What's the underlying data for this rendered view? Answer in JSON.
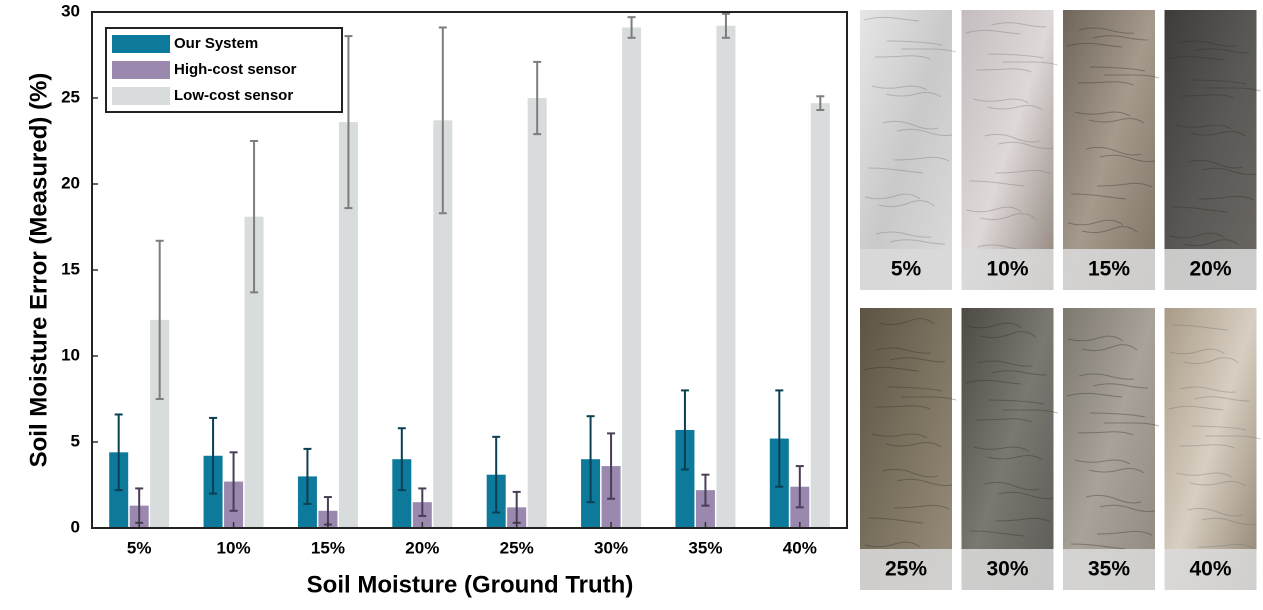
{
  "chart_data": {
    "type": "bar",
    "x_label": "Soil Moisture (Ground Truth)",
    "y_label": "Soil Moisture Error (Measured) (%)",
    "categories": [
      "5%",
      "10%",
      "15%",
      "20%",
      "25%",
      "30%",
      "35%",
      "40%"
    ],
    "series": [
      {
        "name": "Our System",
        "color": "#0d7a9c",
        "values": [
          4.4,
          4.2,
          3.0,
          4.0,
          3.1,
          4.0,
          5.7,
          5.2
        ],
        "errors": [
          2.2,
          2.2,
          1.6,
          1.8,
          2.2,
          2.5,
          2.3,
          2.8
        ],
        "error_color": "#0b3f52"
      },
      {
        "name": "High-cost sensor",
        "color": "#9a88ae",
        "values": [
          1.3,
          2.7,
          1.0,
          1.5,
          1.2,
          3.6,
          2.2,
          2.4
        ],
        "errors": [
          1.0,
          1.7,
          0.8,
          0.8,
          0.9,
          1.9,
          0.9,
          1.2
        ],
        "error_color": "#4a3e56"
      },
      {
        "name": "Low-cost sensor",
        "color": "#d8dcdc",
        "values": [
          12.1,
          18.1,
          23.6,
          23.7,
          25.0,
          29.1,
          29.2,
          24.7
        ],
        "errors": [
          4.6,
          4.4,
          5.0,
          5.4,
          2.1,
          0.6,
          0.7,
          0.4
        ],
        "error_color": "#7d7d7d"
      }
    ],
    "ylim": [
      0,
      30
    ],
    "yticks": [
      0,
      5,
      10,
      15,
      20,
      25,
      30
    ],
    "grid": false,
    "legend": "upper-left"
  },
  "photo_labels": [
    "5%",
    "10%",
    "15%",
    "20%",
    "25%",
    "30%",
    "35%",
    "40%"
  ]
}
